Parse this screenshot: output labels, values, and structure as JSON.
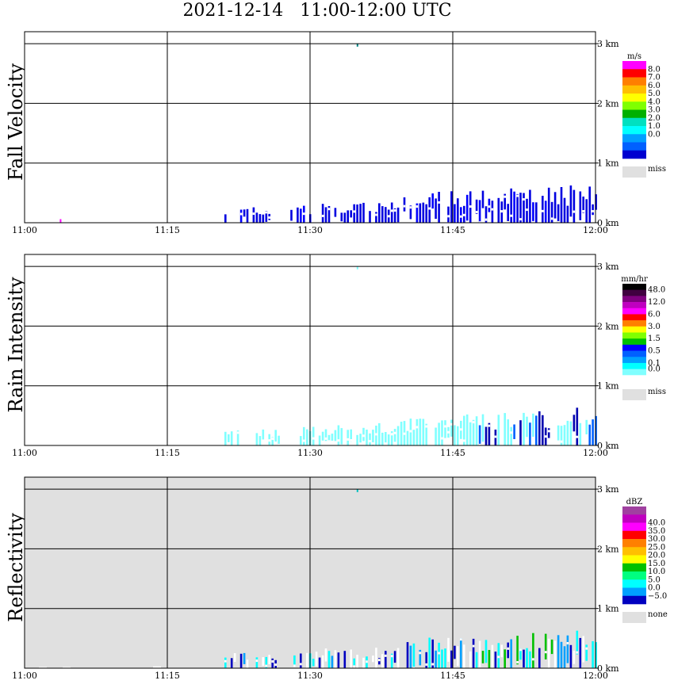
{
  "title": "2021-12-14   11:00-12:00 UTC",
  "chart_data": [
    {
      "type": "heatmap",
      "ylabel": "Fall Velocity",
      "x_ticks": [
        "11:00",
        "11:15",
        "11:30",
        "11:45",
        "12:00"
      ],
      "y_ticks": [
        "0 km",
        "1 km",
        "2 km",
        "3 km"
      ],
      "xlim": [
        "11:00",
        "12:00"
      ],
      "ylim_km": [
        0,
        3.2
      ],
      "background": "#ffffff",
      "legend": {
        "unit": "m/s",
        "colors": [
          "#ff00ff",
          "#ff0000",
          "#ff7f00",
          "#ffbf00",
          "#ffff00",
          "#80ff00",
          "#00b000",
          "#00e0c0",
          "#00ffff",
          "#00a0ff",
          "#0060ff",
          "#0000d0"
        ],
        "labels": [
          {
            "text": "8.0",
            "pos": 0
          },
          {
            "text": "7.0",
            "pos": 1
          },
          {
            "text": "6.0",
            "pos": 2
          },
          {
            "text": "5.0",
            "pos": 3
          },
          {
            "text": "4.0",
            "pos": 4
          },
          {
            "text": "3.0",
            "pos": 5
          },
          {
            "text": "2.0",
            "pos": 6
          },
          {
            "text": "1.0",
            "pos": 7
          },
          {
            "text": "0.0",
            "pos": 8
          }
        ],
        "miss_label": "miss",
        "miss_color": "#e0e0e0"
      },
      "echo": {
        "main_color": "#0000e0",
        "core_color": "#0000a0",
        "accent_color": "#2040ff",
        "gap_color": "#ffffff"
      },
      "features": [
        {
          "t0": 11.2,
          "t1": 12.0,
          "top_km": 0.5,
          "kind": "streaks"
        },
        {
          "t0": 34.9,
          "t1": 35.0,
          "top_km": 3.0,
          "base_km": 2.95,
          "kind": "dot",
          "color": "#008080"
        },
        {
          "t0": 3.7,
          "t1": 3.8,
          "top_km": 0.06,
          "base_km": 0.0,
          "kind": "dot",
          "color": "#ff00ff"
        }
      ]
    },
    {
      "type": "heatmap",
      "ylabel": "Rain Intensity",
      "x_ticks": [
        "11:00",
        "11:15",
        "11:30",
        "11:45",
        "12:00"
      ],
      "y_ticks": [
        "0 km",
        "1 km",
        "2 km",
        "3 km"
      ],
      "xlim": [
        "11:00",
        "12:00"
      ],
      "ylim_km": [
        0,
        3.2
      ],
      "background": "#ffffff",
      "legend": {
        "unit": "mm/hr",
        "colors": [
          "#000000",
          "#400040",
          "#800080",
          "#c000c0",
          "#ff00ff",
          "#ff0000",
          "#ff8000",
          "#ffff00",
          "#80ff00",
          "#00c000",
          "#0000ff",
          "#0060ff",
          "#00a0ff",
          "#00ffff",
          "#80ffff",
          "#ffffff"
        ],
        "labels": [
          {
            "text": "48.0",
            "pos": 0
          },
          {
            "text": "12.0",
            "pos": 2
          },
          {
            "text": "6.0",
            "pos": 4
          },
          {
            "text": "3.0",
            "pos": 6
          },
          {
            "text": "1.5",
            "pos": 8
          },
          {
            "text": "0.5",
            "pos": 10
          },
          {
            "text": "0.1",
            "pos": 12
          },
          {
            "text": "0.0",
            "pos": 13
          }
        ],
        "miss_label": "miss",
        "miss_color": "#e0e0e0"
      },
      "echo": {
        "main_color": "#80ffff",
        "core_color": "#0000b0",
        "accent_color": "#0060ff",
        "gap_color": "#ffffff"
      },
      "features": [
        {
          "t0": 11.2,
          "t1": 12.0,
          "top_km": 0.5,
          "kind": "streaks"
        },
        {
          "t0": 34.9,
          "t1": 35.0,
          "top_km": 3.0,
          "base_km": 2.95,
          "kind": "dot",
          "color": "#80ffff"
        }
      ]
    },
    {
      "type": "heatmap",
      "ylabel": "Reflectivity",
      "x_ticks": [
        "11:00",
        "11:15",
        "11:30",
        "11:45",
        "12:00"
      ],
      "y_ticks": [
        "0 km",
        "1 km",
        "2 km",
        "3 km"
      ],
      "xlim": [
        "11:00",
        "12:00"
      ],
      "ylim_km": [
        0,
        3.2
      ],
      "background": "#e0e0e0",
      "legend": {
        "unit": "dBZ",
        "colors": [
          "#a040a0",
          "#c000c0",
          "#ff00ff",
          "#ff0000",
          "#ff8000",
          "#ffc000",
          "#ffff00",
          "#00c000",
          "#00ff80",
          "#00ffff",
          "#00a0ff",
          "#0000c0"
        ],
        "labels": [
          {
            "text": "40.0",
            "pos": 1
          },
          {
            "text": "35.0",
            "pos": 2
          },
          {
            "text": "30.0",
            "pos": 3
          },
          {
            "text": "25.0",
            "pos": 4
          },
          {
            "text": "20.0",
            "pos": 5
          },
          {
            "text": "15.0",
            "pos": 6
          },
          {
            "text": "10.0",
            "pos": 7
          },
          {
            "text": "5.0",
            "pos": 8
          },
          {
            "text": "0.0",
            "pos": 9
          },
          {
            "text": "−5.0",
            "pos": 10
          }
        ],
        "miss_label": "none",
        "miss_color": "#e0e0e0"
      },
      "echo": {
        "main_color": "#00ffff",
        "core_color": "#0000c0",
        "accent_color": "#00c000",
        "gap_color": "#ffffff"
      },
      "features": [
        {
          "t0": 11.2,
          "t1": 12.0,
          "top_km": 0.5,
          "kind": "streaks"
        },
        {
          "t0": 34.9,
          "t1": 35.0,
          "top_km": 3.0,
          "base_km": 2.95,
          "kind": "dot",
          "color": "#00c0c0"
        }
      ]
    }
  ]
}
